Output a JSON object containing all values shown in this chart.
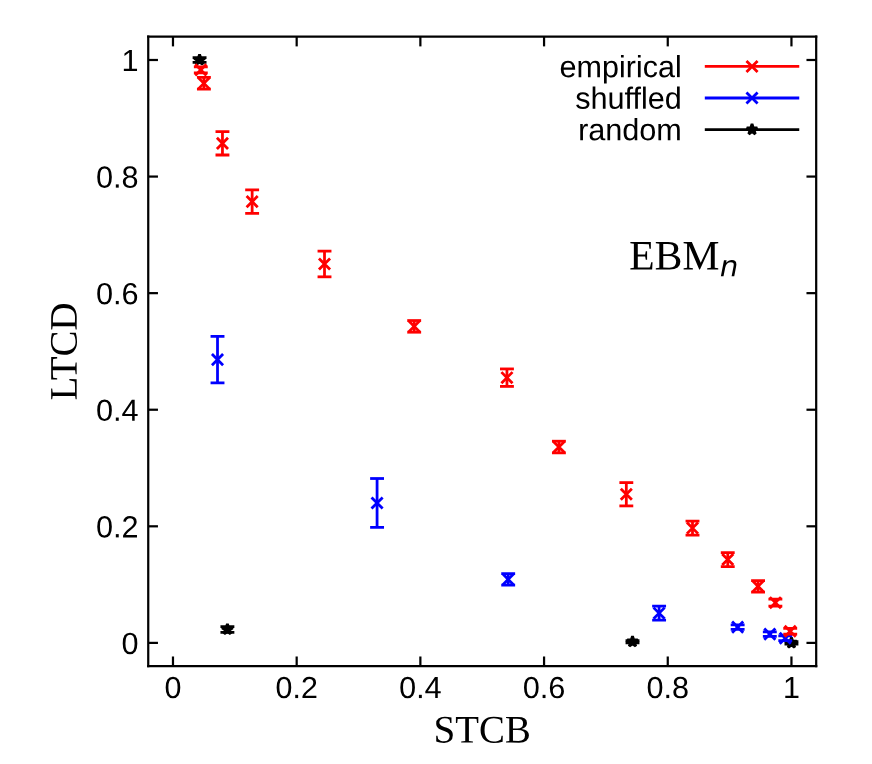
{
  "chart_data": {
    "type": "scatter",
    "xlabel": "STCB",
    "ylabel": "LTCD",
    "xlim": [
      -0.04,
      1.04
    ],
    "ylim": [
      -0.04,
      1.04
    ],
    "xticks": [
      0,
      0.2,
      0.4,
      0.6,
      0.8,
      1
    ],
    "yticks": [
      0,
      0.2,
      0.4,
      0.6,
      0.8,
      1
    ],
    "grid": false,
    "legend": "top right",
    "annotations": [
      "EBM$_{n}$"
    ],
    "series": [
      {
        "name": "empirical",
        "color": "#ff0000",
        "marker": "cross",
        "x": [
          0.045,
          0.05,
          0.08,
          0.128,
          0.245,
          0.39,
          0.54,
          0.624,
          0.733,
          0.84,
          0.897,
          0.946,
          0.974,
          0.998
        ],
        "values": [
          0.983,
          0.96,
          0.857,
          0.757,
          0.65,
          0.543,
          0.455,
          0.336,
          0.255,
          0.197,
          0.143,
          0.097,
          0.069,
          0.02
        ],
        "errors": [
          0.005,
          0.01,
          0.02,
          0.02,
          0.022,
          0.01,
          0.015,
          0.01,
          0.02,
          0.012,
          0.012,
          0.01,
          0.006,
          0.005
        ]
      },
      {
        "name": "shuffled",
        "color": "#0000ff",
        "marker": "cross",
        "x": [
          0.072,
          0.33,
          0.542,
          0.786,
          0.913,
          0.965,
          0.99
        ],
        "values": [
          0.486,
          0.24,
          0.109,
          0.051,
          0.027,
          0.015,
          0.008
        ],
        "errors": [
          0.04,
          0.042,
          0.01,
          0.012,
          0.004,
          0.004,
          0.004
        ]
      },
      {
        "name": "random",
        "color": "#000000",
        "marker": "star",
        "x": [
          0.043,
          0.088,
          0.743,
          1.0
        ],
        "values": [
          1.0,
          0.023,
          0.002,
          0.0
        ],
        "errors": [
          0.004,
          0.005,
          0.002,
          0.002
        ]
      }
    ]
  }
}
